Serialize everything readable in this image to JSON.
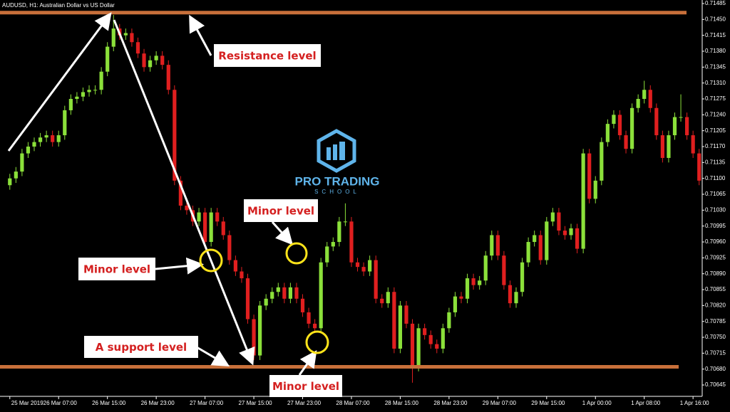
{
  "header": "AUDUSD, H1:  Australian Dollar vs US Dollar",
  "logo": {
    "title": "PRO TRADING",
    "subtitle": "SCHOOL"
  },
  "chart_data": {
    "type": "candlestick",
    "up_color": "#8be03a",
    "down_color": "#e01f1f",
    "level_color": "#c8703a",
    "categories": [
      "25 Mar 2019",
      null,
      null,
      null,
      null,
      null,
      null,
      null,
      "26 Mar 07:00",
      null,
      null,
      null,
      null,
      null,
      null,
      null,
      "26 Mar 15:00",
      null,
      null,
      null,
      null,
      null,
      null,
      null,
      "26 Mar 23:00",
      null,
      null,
      null,
      null,
      null,
      null,
      null,
      "27 Mar 07:00",
      null,
      null,
      null,
      null,
      null,
      null,
      null,
      "27 Mar 15:00",
      null,
      null,
      null,
      null,
      null,
      null,
      null,
      "27 Mar 23:00",
      null,
      null,
      null,
      null,
      null,
      null,
      null,
      "28 Mar 07:00",
      null,
      null,
      null,
      null,
      null,
      null,
      null,
      "28 Mar 15:00",
      null,
      null,
      null,
      null,
      null,
      null,
      null,
      "28 Mar 23:00",
      null,
      null,
      null,
      null,
      null,
      null,
      null,
      "29 Mar 07:00",
      null,
      null,
      null,
      null,
      null,
      null,
      null,
      "29 Mar 15:00",
      null,
      null,
      null,
      null,
      null,
      null,
      null,
      "1 Apr 00:00",
      null,
      null,
      null,
      null,
      null,
      null,
      null,
      "1 Apr 08:00",
      null,
      null,
      null,
      null,
      null,
      null,
      null,
      "1 Apr 16:00",
      null
    ],
    "open": [
      0.71085,
      0.711,
      0.71115,
      0.71155,
      0.7117,
      0.7118,
      0.7119,
      0.71195,
      0.7118,
      0.71195,
      0.7125,
      0.71275,
      0.7128,
      0.7129,
      0.71295,
      0.71295,
      0.71335,
      0.7139,
      0.7143,
      0.71415,
      0.7142,
      0.714,
      0.71375,
      0.71345,
      0.7136,
      0.7137,
      0.7135,
      0.71295,
      0.71095,
      0.7104,
      0.7103,
      0.71005,
      0.71025,
      0.7096,
      0.71025,
      0.71005,
      0.70975,
      0.7092,
      0.70895,
      0.7088,
      0.7079,
      0.7071,
      0.7082,
      0.70835,
      0.7085,
      0.7086,
      0.70835,
      0.7086,
      0.70835,
      0.70805,
      0.7078,
      0.7077,
      0.70915,
      0.7095,
      0.7096,
      0.71005,
      0.71005,
      0.70915,
      0.70905,
      0.70895,
      0.7092,
      0.70835,
      0.70825,
      0.7085,
      0.70725,
      0.7082,
      0.7078,
      0.70685,
      0.7077,
      0.70755,
      0.70735,
      0.70725,
      0.7077,
      0.70805,
      0.7084,
      0.70835,
      0.7088,
      0.70865,
      0.70875,
      0.7093,
      0.70975,
      0.7093,
      0.70865,
      0.70825,
      0.7085,
      0.70915,
      0.7096,
      0.70975,
      0.7092,
      0.71005,
      0.71025,
      0.70985,
      0.70975,
      0.7099,
      0.70945,
      0.71155,
      0.71055,
      0.71095,
      0.7118,
      0.7122,
      0.7124,
      0.71195,
      0.71165,
      0.71255,
      0.71275,
      0.71295,
      0.71255,
      0.71195,
      0.71145,
      0.71195,
      0.71235,
      0.71235,
      0.71195,
      0.71155
    ],
    "high": [
      0.7111,
      0.71125,
      0.71165,
      0.7118,
      0.7119,
      0.712,
      0.71205,
      0.71205,
      0.71205,
      0.7126,
      0.71285,
      0.7129,
      0.713,
      0.71305,
      0.71305,
      0.71345,
      0.714,
      0.7146,
      0.7144,
      0.7143,
      0.7143,
      0.7141,
      0.71385,
      0.7137,
      0.7138,
      0.7138,
      0.7136,
      0.71305,
      0.71105,
      0.7105,
      0.7104,
      0.71035,
      0.71035,
      0.71035,
      0.71035,
      0.71015,
      0.70985,
      0.7093,
      0.70905,
      0.7089,
      0.708,
      0.7083,
      0.70845,
      0.7086,
      0.7087,
      0.7087,
      0.7087,
      0.7087,
      0.70845,
      0.70815,
      0.7079,
      0.70925,
      0.7096,
      0.7097,
      0.71015,
      0.71045,
      0.71015,
      0.70925,
      0.70915,
      0.7093,
      0.7093,
      0.70845,
      0.7086,
      0.7086,
      0.7083,
      0.7083,
      0.7079,
      0.7078,
      0.7078,
      0.70765,
      0.70745,
      0.7078,
      0.70815,
      0.7085,
      0.7085,
      0.7089,
      0.7089,
      0.70885,
      0.7094,
      0.70985,
      0.70985,
      0.7094,
      0.70875,
      0.7086,
      0.70925,
      0.7097,
      0.70985,
      0.70985,
      0.71015,
      0.71035,
      0.71035,
      0.70995,
      0.71,
      0.71,
      0.71165,
      0.71165,
      0.71105,
      0.7119,
      0.7123,
      0.7125,
      0.7125,
      0.71205,
      0.71265,
      0.71285,
      0.71315,
      0.71305,
      0.71265,
      0.71205,
      0.71205,
      0.71245,
      0.71285,
      0.71245,
      0.71205,
      0.71165
    ],
    "low": [
      0.71075,
      0.7109,
      0.71105,
      0.71145,
      0.7116,
      0.7117,
      0.7118,
      0.7117,
      0.7117,
      0.71185,
      0.7124,
      0.71265,
      0.7127,
      0.7128,
      0.71285,
      0.71285,
      0.71325,
      0.7138,
      0.71405,
      0.71405,
      0.7139,
      0.71365,
      0.71335,
      0.71335,
      0.7135,
      0.7134,
      0.71285,
      0.71085,
      0.7103,
      0.7102,
      0.70995,
      0.70995,
      0.7095,
      0.7095,
      0.70995,
      0.70965,
      0.7091,
      0.70885,
      0.7087,
      0.7078,
      0.707,
      0.707,
      0.7081,
      0.70825,
      0.7084,
      0.70825,
      0.70825,
      0.70825,
      0.70795,
      0.7077,
      0.7076,
      0.7076,
      0.70905,
      0.7094,
      0.7095,
      0.70995,
      0.70905,
      0.70895,
      0.70885,
      0.70885,
      0.70825,
      0.70815,
      0.70815,
      0.70715,
      0.70715,
      0.7077,
      0.7065,
      0.70675,
      0.70745,
      0.70725,
      0.70715,
      0.70715,
      0.7076,
      0.70795,
      0.70825,
      0.70825,
      0.70855,
      0.70855,
      0.70865,
      0.7092,
      0.7092,
      0.70855,
      0.70815,
      0.70815,
      0.7084,
      0.70905,
      0.7095,
      0.7091,
      0.7091,
      0.70995,
      0.70975,
      0.70965,
      0.70965,
      0.70935,
      0.70935,
      0.71045,
      0.71045,
      0.71085,
      0.7117,
      0.7121,
      0.71185,
      0.71155,
      0.71155,
      0.71245,
      0.71265,
      0.71245,
      0.71185,
      0.71135,
      0.71135,
      0.71185,
      0.71225,
      0.71185,
      0.71145,
      0.71085
    ],
    "close": [
      0.711,
      0.71115,
      0.71155,
      0.7117,
      0.7118,
      0.7119,
      0.71195,
      0.7118,
      0.71195,
      0.7125,
      0.71275,
      0.7128,
      0.7129,
      0.71295,
      0.71295,
      0.71335,
      0.7139,
      0.7143,
      0.71415,
      0.7142,
      0.714,
      0.71375,
      0.71345,
      0.7136,
      0.7137,
      0.7135,
      0.71295,
      0.71095,
      0.7104,
      0.7103,
      0.71005,
      0.71025,
      0.7096,
      0.71025,
      0.71005,
      0.70975,
      0.7092,
      0.70895,
      0.7088,
      0.7079,
      0.7071,
      0.7082,
      0.70835,
      0.7085,
      0.7086,
      0.70835,
      0.7086,
      0.70835,
      0.70805,
      0.7078,
      0.7077,
      0.70915,
      0.7095,
      0.7096,
      0.71005,
      0.71005,
      0.70915,
      0.70905,
      0.70895,
      0.7092,
      0.70835,
      0.70825,
      0.7085,
      0.70725,
      0.7082,
      0.7078,
      0.70685,
      0.7077,
      0.70755,
      0.70735,
      0.70725,
      0.7077,
      0.70805,
      0.7084,
      0.70835,
      0.7088,
      0.70865,
      0.70875,
      0.7093,
      0.70975,
      0.7093,
      0.70865,
      0.70825,
      0.7085,
      0.70915,
      0.7096,
      0.70975,
      0.7092,
      0.71005,
      0.71025,
      0.70985,
      0.70975,
      0.7099,
      0.70945,
      0.71155,
      0.71055,
      0.71095,
      0.7118,
      0.7122,
      0.7124,
      0.71195,
      0.71165,
      0.71255,
      0.71275,
      0.71295,
      0.71255,
      0.71195,
      0.71145,
      0.71195,
      0.71235,
      0.71235,
      0.71195,
      0.71155,
      0.71095
    ],
    "levels": [
      0.71465,
      0.70685
    ],
    "annotations": [
      "Resistance level",
      "Minor level",
      "Minor level",
      "A support level",
      "Minor level"
    ],
    "ylim": [
      0.7062,
      0.7149
    ],
    "yticks": [
      0.71485,
      {
        "value": 0.7145,
        "label": "0.71450"
      },
      0.71415,
      {
        "value": 0.7138,
        "label": "0.71380"
      },
      0.71345,
      {
        "value": 0.7131,
        "label": "0.71310"
      },
      0.71275,
      {
        "value": 0.7124,
        "label": "0.71240"
      },
      0.71205,
      {
        "value": 0.7117,
        "label": "0.71170"
      },
      0.71135,
      {
        "value": 0.711,
        "label": "0.71100"
      },
      0.71065,
      {
        "value": 0.7103,
        "label": "0.71030"
      },
      0.70995,
      {
        "value": 0.7096,
        "label": "0.70960"
      },
      0.70925,
      {
        "value": 0.7089,
        "label": "0.70890"
      },
      0.70855,
      {
        "value": 0.7082,
        "label": "0.70820"
      },
      0.70785,
      {
        "value": 0.7075,
        "label": "0.70750"
      },
      0.70715,
      {
        "value": 0.7068,
        "label": "0.70680"
      },
      0.70645
    ]
  }
}
